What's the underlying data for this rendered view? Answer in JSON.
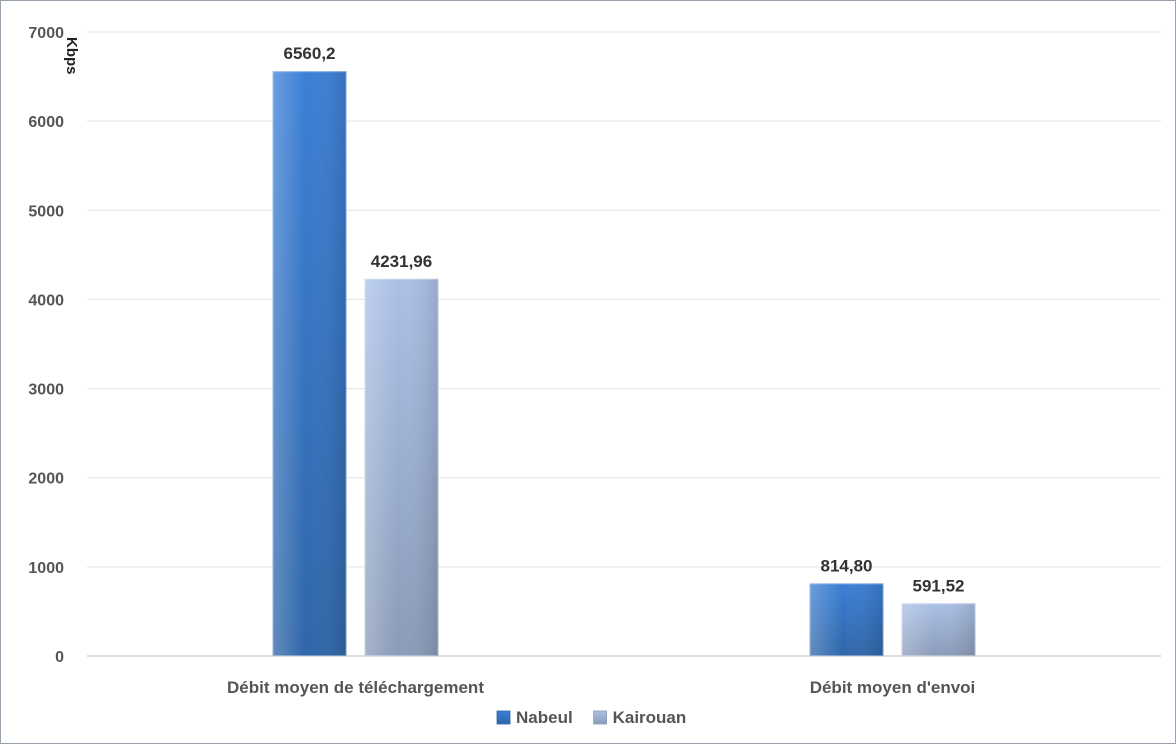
{
  "chart_data": {
    "type": "bar",
    "ylabel": "Kbps",
    "ylim": [
      0,
      7000
    ],
    "yticks": [
      "0",
      "1000",
      "2000",
      "3000",
      "4000",
      "5000",
      "6000",
      "7000"
    ],
    "grid": true,
    "legend_position": "bottom",
    "categories": [
      "Débit moyen de téléchargement",
      "Débit moyen d'envoi"
    ],
    "series": [
      {
        "name": "Nabeul",
        "values": [
          6560.2,
          814.8
        ],
        "labels": [
          "6560,2",
          "814,80"
        ],
        "color": "#3b7fd6",
        "color_dark": "#2f66a8"
      },
      {
        "name": "Kairouan",
        "values": [
          4231.96,
          591.52
        ],
        "labels": [
          "4231,96",
          "591,52"
        ],
        "color": "#aac0e6",
        "color_dark": "#8a9bb8"
      }
    ]
  }
}
